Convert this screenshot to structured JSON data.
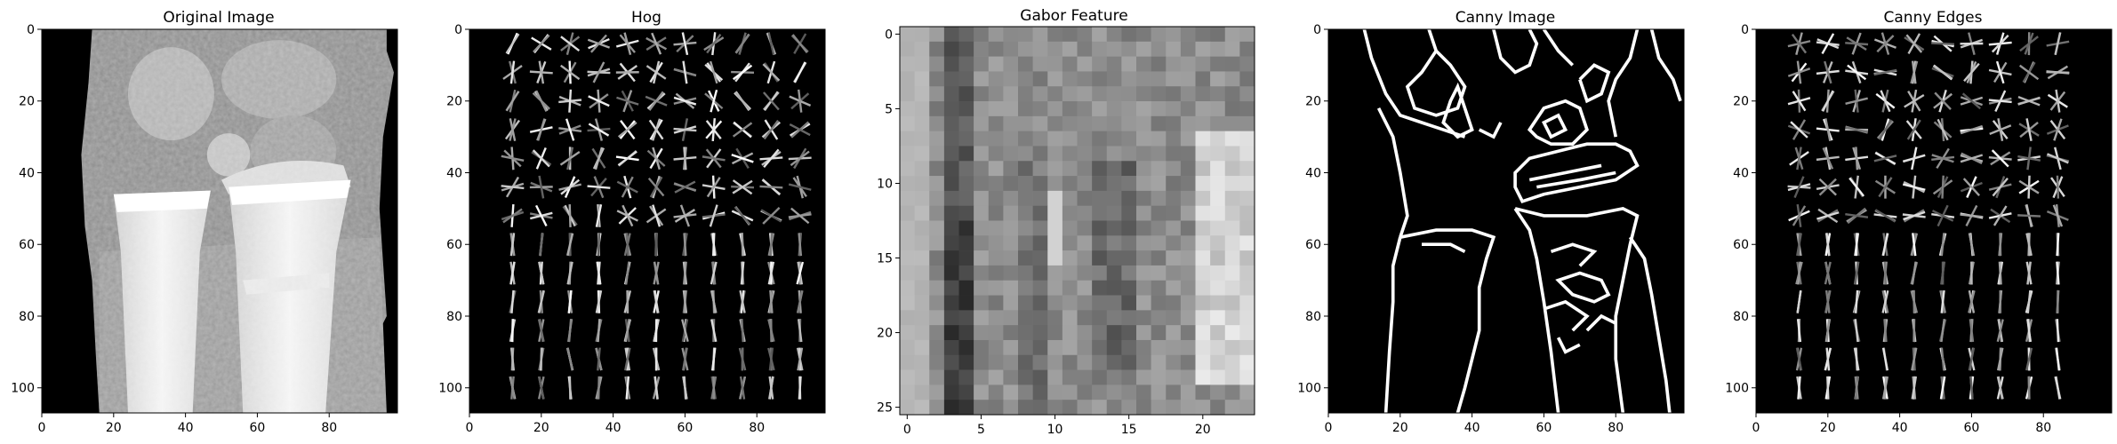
{
  "figure": {
    "background": "#ffffff",
    "panel_count": 5
  },
  "chart_data": [
    {
      "type": "heatmap",
      "title": "Original Image",
      "colormap": "gray",
      "content": "x-ray-wrist",
      "xlim": [
        0,
        99
      ],
      "ylim": [
        107,
        0
      ],
      "xticks": [
        "0",
        "20",
        "40",
        "60",
        "80"
      ],
      "yticks": [
        "0",
        "20",
        "40",
        "60",
        "80",
        "100"
      ],
      "xtick_values": [
        0,
        20,
        40,
        60,
        80
      ],
      "ytick_values": [
        0,
        20,
        40,
        60,
        80,
        100
      ]
    },
    {
      "type": "heatmap",
      "title": "Hog",
      "colormap": "gray",
      "content": "hog-glyph-grid",
      "xlim": [
        0,
        99
      ],
      "ylim": [
        107,
        0
      ],
      "xticks": [
        "0",
        "20",
        "40",
        "60",
        "80"
      ],
      "yticks": [
        "0",
        "20",
        "40",
        "60",
        "80",
        "100"
      ],
      "xtick_values": [
        0,
        20,
        40,
        60,
        80
      ],
      "ytick_values": [
        0,
        20,
        40,
        60,
        80,
        100
      ]
    },
    {
      "type": "heatmap",
      "title": "Gabor Feature",
      "colormap": "gray",
      "content": "coarse-gabor-blocks",
      "xlim": [
        -0.5,
        23.5
      ],
      "ylim": [
        25.5,
        -0.5
      ],
      "xticks": [
        "0",
        "5",
        "10",
        "15",
        "20"
      ],
      "yticks": [
        "0",
        "5",
        "10",
        "15",
        "20",
        "25"
      ],
      "xtick_values": [
        0,
        5,
        10,
        15,
        20
      ],
      "ytick_values": [
        0,
        5,
        10,
        15,
        20,
        25
      ]
    },
    {
      "type": "heatmap",
      "title": "Canny Image",
      "colormap": "gray",
      "content": "canny-edge-outline",
      "xlim": [
        0,
        99
      ],
      "ylim": [
        107,
        0
      ],
      "xticks": [
        "0",
        "20",
        "40",
        "60",
        "80"
      ],
      "yticks": [
        "0",
        "20",
        "40",
        "60",
        "80",
        "100"
      ],
      "xtick_values": [
        0,
        20,
        40,
        60,
        80
      ],
      "ytick_values": [
        0,
        20,
        40,
        60,
        80,
        100
      ]
    },
    {
      "type": "heatmap",
      "title": "Canny Edges",
      "colormap": "gray",
      "content": "hog-of-canny-glyph-grid",
      "xlim": [
        0,
        99
      ],
      "ylim": [
        107,
        0
      ],
      "xticks": [
        "0",
        "20",
        "40",
        "60",
        "80"
      ],
      "yticks": [
        "0",
        "20",
        "40",
        "60",
        "80",
        "100"
      ],
      "xtick_values": [
        0,
        20,
        40,
        60,
        80
      ],
      "ytick_values": [
        0,
        20,
        40,
        60,
        80,
        100
      ]
    }
  ]
}
